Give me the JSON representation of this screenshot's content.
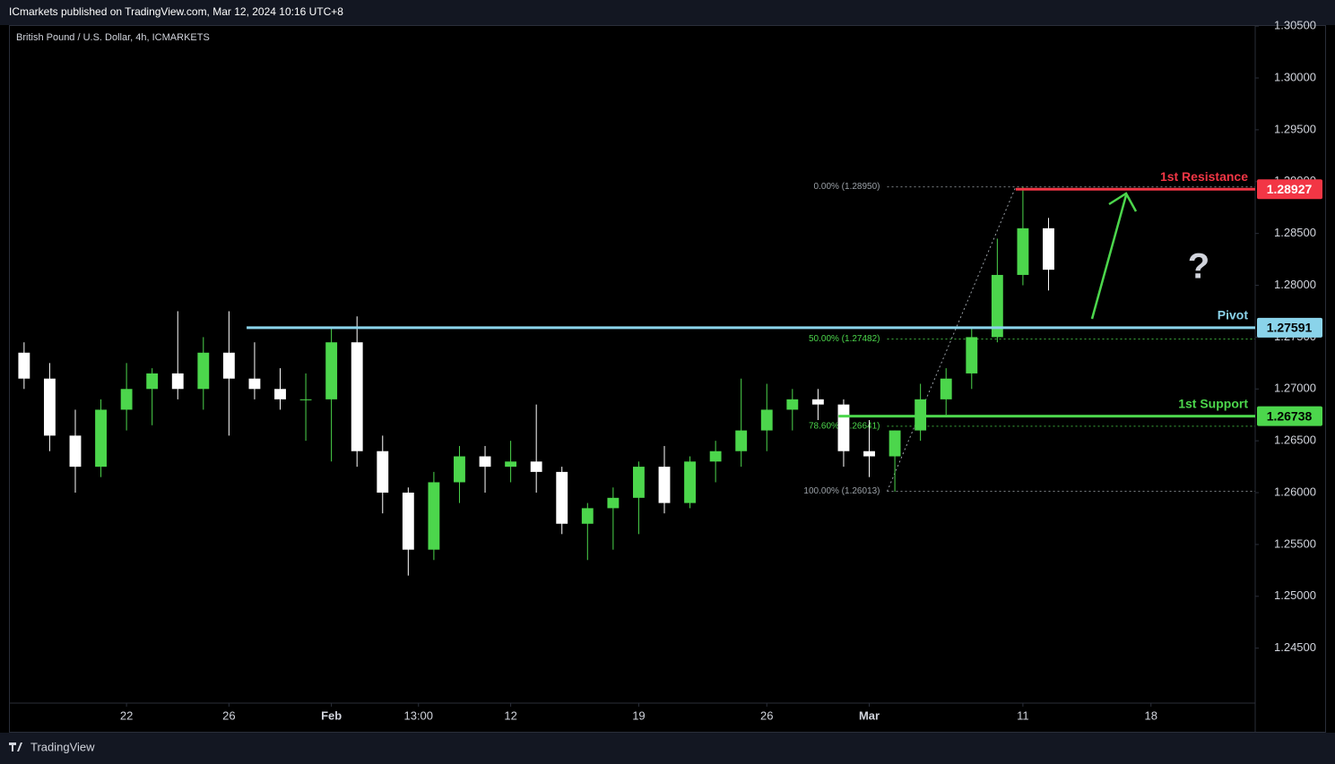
{
  "chart_data": {
    "type": "candlestick",
    "header": "ICmarkets published on TradingView.com, Mar 12, 2024 10:16 UTC+8",
    "title": "British Pound / U.S. Dollar, 4h, ICMARKETS",
    "footer": "TradingView",
    "up_color": "#4cd64c",
    "down_color": "#ffffff",
    "x": [
      -4,
      -3,
      -2,
      -1,
      0,
      1,
      2,
      3,
      4,
      5,
      6,
      7,
      8,
      9,
      10,
      11,
      12,
      13,
      14,
      15,
      16,
      17,
      18,
      19,
      20,
      21,
      22,
      23,
      24,
      25,
      26,
      27,
      28,
      29,
      30,
      31,
      32,
      33,
      34,
      35,
      36
    ],
    "open": [
      1.2735,
      1.271,
      1.2655,
      1.2625,
      1.268,
      1.27,
      1.2715,
      1.27,
      1.2735,
      1.271,
      1.27,
      1.269,
      1.269,
      1.2745,
      1.264,
      1.26,
      1.2545,
      1.261,
      1.2635,
      1.2625,
      1.263,
      1.262,
      1.257,
      1.2585,
      1.2595,
      1.2625,
      1.259,
      1.263,
      1.264,
      1.266,
      1.268,
      1.269,
      1.2685,
      1.264,
      1.2635,
      1.266,
      1.269,
      1.2715,
      1.275,
      1.281,
      1.2855
    ],
    "high": [
      1.2745,
      1.2725,
      1.268,
      1.269,
      1.2725,
      1.272,
      1.2775,
      1.275,
      1.2775,
      1.2745,
      1.272,
      1.2715,
      1.276,
      1.277,
      1.2655,
      1.2605,
      1.262,
      1.2645,
      1.2645,
      1.265,
      1.2685,
      1.2625,
      1.259,
      1.2605,
      1.263,
      1.2645,
      1.2635,
      1.265,
      1.271,
      1.2705,
      1.27,
      1.27,
      1.269,
      1.267,
      1.266,
      1.2705,
      1.272,
      1.276,
      1.2845,
      1.2895,
      1.2865
    ],
    "low": [
      1.27,
      1.264,
      1.26,
      1.2615,
      1.266,
      1.2665,
      1.269,
      1.268,
      1.2655,
      1.269,
      1.268,
      1.265,
      1.263,
      1.2625,
      1.258,
      1.252,
      1.2535,
      1.259,
      1.26,
      1.261,
      1.26,
      1.256,
      1.2535,
      1.2545,
      1.256,
      1.258,
      1.2585,
      1.261,
      1.2625,
      1.264,
      1.266,
      1.267,
      1.2625,
      1.2615,
      1.2601,
      1.265,
      1.2675,
      1.27,
      1.2745,
      1.28,
      1.2795
    ],
    "close": [
      1.271,
      1.2655,
      1.2625,
      1.268,
      1.27,
      1.2715,
      1.27,
      1.2735,
      1.271,
      1.27,
      1.269,
      1.269,
      1.2745,
      1.264,
      1.26,
      1.2545,
      1.261,
      1.2635,
      1.2625,
      1.263,
      1.262,
      1.257,
      1.2585,
      1.2595,
      1.2625,
      1.259,
      1.263,
      1.264,
      1.266,
      1.268,
      1.269,
      1.2685,
      1.264,
      1.2635,
      1.266,
      1.269,
      1.271,
      1.275,
      1.281,
      1.2855,
      1.2815
    ],
    "xlim": [
      -4.59,
      44.07
    ],
    "xticks": [
      {
        "value": 0,
        "label": "22"
      },
      {
        "value": 4,
        "label": "26"
      },
      {
        "value": 8,
        "label": "Feb"
      },
      {
        "value": 11.4,
        "label": "13:00"
      },
      {
        "value": 15,
        "label": "12"
      },
      {
        "value": 20,
        "label": "19"
      },
      {
        "value": 25,
        "label": "26"
      },
      {
        "value": 29,
        "label": "Mar"
      },
      {
        "value": 35,
        "label": "11"
      },
      {
        "value": 40,
        "label": "18"
      }
    ],
    "ylim": [
      1.2397,
      1.3051
    ],
    "yticks": [
      {
        "value": 1.245,
        "label": "1.24500"
      },
      {
        "value": 1.25,
        "label": "1.25000"
      },
      {
        "value": 1.255,
        "label": "1.25500"
      },
      {
        "value": 1.26,
        "label": "1.26000"
      },
      {
        "value": 1.265,
        "label": "1.26500"
      },
      {
        "value": 1.27,
        "label": "1.27000"
      },
      {
        "value": 1.275,
        "label": "1.27500"
      },
      {
        "value": 1.28,
        "label": "1.28000"
      },
      {
        "value": 1.285,
        "label": "1.28500"
      },
      {
        "value": 1.29,
        "label": "1.29000"
      },
      {
        "value": 1.295,
        "label": "1.29500"
      },
      {
        "value": 1.3,
        "label": "1.30000"
      },
      {
        "value": 1.305,
        "label": "1.30500"
      }
    ],
    "levels": [
      {
        "name": "1st Resistance",
        "value": 1.28927,
        "color": "#f23645",
        "text_color": "#ffffff",
        "from": 34.72
      },
      {
        "name": "Pivot",
        "value": 1.27591,
        "color": "#8ad3ea",
        "text_color": "#000000",
        "from": 4.69
      },
      {
        "name": "1st Support",
        "value": 1.26738,
        "color": "#4cd64c",
        "text_color": "#000000",
        "from": 27.8
      }
    ],
    "fib": [
      {
        "label": "0.00% (1.28950)",
        "value": 1.2895,
        "color": "#9aa0a6"
      },
      {
        "label": "50.00% (1.27482)",
        "value": 1.27482,
        "color": "#4cd64c"
      },
      {
        "label": "78.60% (1.26641)",
        "value": 1.26641,
        "color": "#4cd64c"
      },
      {
        "label": "100.00% (1.26013)",
        "value": 1.26013,
        "color": "#9aa0a6"
      }
    ],
    "fib_from": 29.7,
    "fib_to": 34.72
  }
}
